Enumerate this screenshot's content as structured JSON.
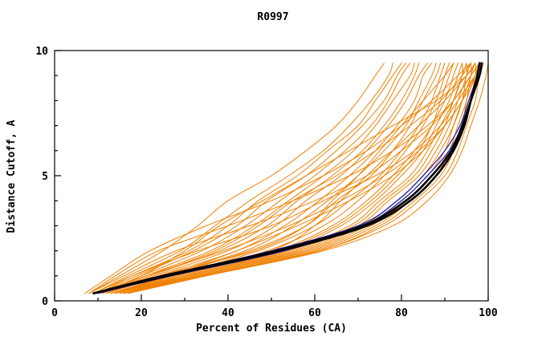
{
  "title": "R0997",
  "chart_data": {
    "type": "line",
    "title": "R0997",
    "xlabel": "Percent of Residues (CA)",
    "ylabel": "Distance Cutoff, A",
    "xlim": [
      0,
      100
    ],
    "ylim": [
      0,
      10
    ],
    "x_ticks": [
      0,
      20,
      40,
      60,
      80,
      100
    ],
    "x_minor_step": 10,
    "y_ticks": [
      0,
      5,
      10
    ],
    "y_minor_step": 1,
    "grid": false,
    "legend": "none",
    "colors": {
      "model_curves": "#f08000",
      "highlight_curves": "#2020b0",
      "reference_curve": "#000000",
      "axis": "#000000",
      "background": "#ffffff"
    },
    "y_grid": [
      0.3,
      1,
      2,
      3,
      4,
      5,
      6,
      7,
      8,
      9,
      9.5
    ],
    "series": {
      "orange_model_curves_x": [
        [
          8,
          15,
          25,
          33,
          40,
          50,
          58,
          65,
          70,
          74,
          76
        ],
        [
          9,
          17,
          29,
          37,
          45,
          54,
          62,
          68,
          73,
          77,
          78
        ],
        [
          10,
          18,
          31,
          40,
          47,
          56,
          63,
          70,
          74,
          78,
          80
        ],
        [
          10,
          19,
          32,
          42,
          49,
          58,
          65,
          71,
          76,
          79,
          81
        ],
        [
          11,
          20,
          34,
          44,
          52,
          60,
          67,
          73,
          77,
          80,
          82
        ],
        [
          11,
          21,
          36,
          46,
          54,
          62,
          69,
          74,
          78,
          82,
          83
        ],
        [
          11,
          22,
          38,
          49,
          56,
          64,
          71,
          76,
          80,
          83,
          84
        ],
        [
          12,
          23,
          40,
          51,
          58,
          66,
          72,
          77,
          81,
          84,
          86
        ],
        [
          12,
          24,
          42,
          53,
          61,
          68,
          74,
          79,
          83,
          85,
          87
        ],
        [
          12,
          25,
          44,
          55,
          63,
          70,
          76,
          81,
          84,
          87,
          88
        ],
        [
          13,
          26,
          45,
          58,
          65,
          73,
          78,
          82,
          85,
          88,
          89
        ],
        [
          13,
          27,
          47,
          60,
          68,
          75,
          80,
          84,
          87,
          89,
          90
        ],
        [
          14,
          28,
          49,
          62,
          70,
          76,
          81,
          85,
          88,
          90,
          91
        ],
        [
          14,
          29,
          51,
          64,
          72,
          78,
          83,
          87,
          89,
          91,
          92
        ],
        [
          14,
          30,
          52,
          65,
          73,
          79,
          84,
          87,
          90,
          92,
          93
        ],
        [
          15,
          30,
          53,
          66,
          74,
          80,
          85,
          88,
          91,
          93,
          94
        ],
        [
          15,
          31,
          54,
          68,
          75,
          82,
          86,
          89,
          92,
          94,
          94
        ],
        [
          15,
          31,
          55,
          69,
          76,
          83,
          87,
          90,
          92,
          94,
          95
        ],
        [
          15,
          32,
          56,
          70,
          77,
          84,
          88,
          91,
          93,
          95,
          95
        ],
        [
          16,
          32,
          57,
          71,
          79,
          85,
          89,
          92,
          94,
          95,
          96
        ],
        [
          16,
          33,
          58,
          72,
          80,
          86,
          90,
          92,
          94,
          96,
          96
        ],
        [
          16,
          33,
          59,
          73,
          81,
          87,
          91,
          93,
          95,
          96,
          97
        ],
        [
          16,
          34,
          60,
          74,
          82,
          88,
          91,
          94,
          95,
          97,
          97
        ],
        [
          17,
          34,
          61,
          75,
          83,
          89,
          92,
          94,
          96,
          97,
          98
        ],
        [
          17,
          35,
          61,
          76,
          84,
          90,
          93,
          95,
          97,
          98,
          99
        ],
        [
          17,
          35,
          62,
          78,
          86,
          91,
          94,
          96,
          98,
          99.5,
          100
        ],
        [
          7,
          13,
          22,
          35,
          50,
          62,
          72,
          80,
          87,
          93,
          96
        ],
        [
          8,
          16,
          28,
          45,
          60,
          72,
          80,
          87,
          92,
          96,
          98
        ],
        [
          10,
          20,
          30,
          38,
          48,
          58,
          68,
          78,
          88,
          95,
          97
        ],
        [
          13,
          28,
          50,
          60,
          66,
          72,
          78,
          84,
          90,
          95,
          97
        ],
        [
          11,
          24,
          46,
          58,
          64,
          70,
          75,
          80,
          85,
          90,
          92
        ],
        [
          9,
          18,
          33,
          50,
          62,
          74,
          83,
          89,
          93,
          97,
          99
        ],
        [
          12,
          22,
          37,
          47,
          55,
          65,
          74,
          82,
          89,
          94,
          96
        ],
        [
          14,
          26,
          42,
          56,
          68,
          78,
          85,
          90,
          94,
          97,
          99
        ],
        [
          10,
          21,
          39,
          54,
          66,
          76,
          84,
          90,
          94,
          97,
          98
        ],
        [
          8,
          14,
          24,
          40,
          55,
          68,
          78,
          86,
          92,
          96,
          98
        ]
      ],
      "blue_highlight_curves_x": [
        [
          10,
          27,
          53,
          71,
          80,
          86,
          91,
          94,
          96,
          98,
          98.5
        ],
        [
          9,
          25,
          50,
          70,
          79,
          85,
          90,
          93.5,
          95.5,
          97.5,
          98
        ]
      ],
      "black_reference_curves_x": [
        [
          9,
          26,
          52,
          72,
          82,
          88,
          92,
          94.5,
          96,
          97.5,
          98
        ],
        [
          9,
          25,
          51,
          71,
          81,
          87,
          91.5,
          94,
          96,
          98,
          98.5
        ]
      ]
    }
  }
}
